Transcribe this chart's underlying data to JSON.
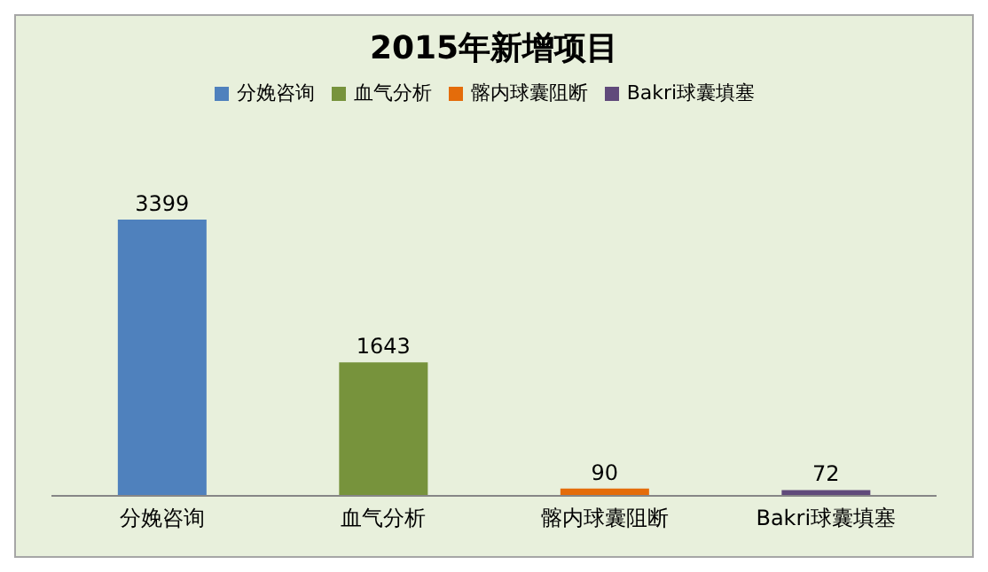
{
  "chart_data": {
    "type": "bar",
    "title": "2015年新增项目",
    "categories": [
      "分娩咨询",
      "血气分析",
      "髂内球囊阻断",
      "Bakri球囊填塞"
    ],
    "series": [
      {
        "name": "分娩咨询",
        "color": "#4f81bd",
        "values": [
          3399,
          null,
          null,
          null
        ]
      },
      {
        "name": "血气分析",
        "color": "#77933c",
        "values": [
          null,
          1643,
          null,
          null
        ]
      },
      {
        "name": "髂内球囊阻断",
        "color": "#e46c0a",
        "values": [
          null,
          null,
          90,
          null
        ]
      },
      {
        "name": "Bakri球囊填塞",
        "color": "#604a7b",
        "values": [
          null,
          null,
          null,
          72
        ]
      }
    ],
    "stacked": true,
    "data_labels": true,
    "legend": "top"
  }
}
